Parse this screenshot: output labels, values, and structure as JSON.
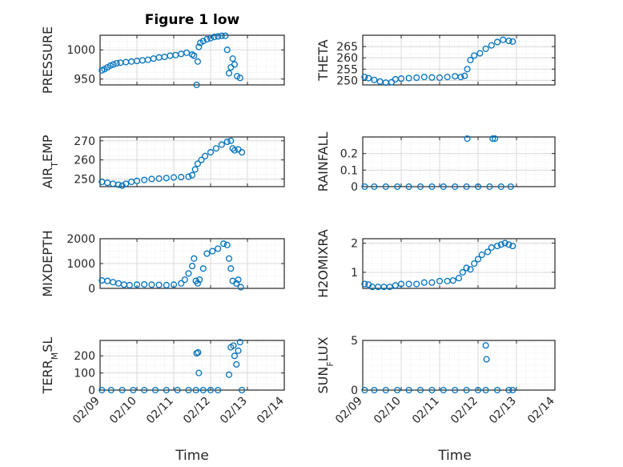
{
  "figure": {
    "title": "Figure 1 low",
    "x_ticks": [
      "02/09",
      "02/10",
      "02/11",
      "02/12",
      "02/13",
      "02/14"
    ],
    "xlabel": "Time",
    "marker_color": "#0072bd",
    "grid_color": "#d9d9d9",
    "axis_color": "#262626"
  },
  "chart_data": [
    {
      "type": "scatter",
      "ylabel": "PRESSURE",
      "xlim": [
        0,
        5
      ],
      "ylim": [
        940,
        1025
      ],
      "y_ticks": [
        950,
        1000
      ],
      "grid": true,
      "points": [
        [
          0.05,
          965
        ],
        [
          0.12,
          967
        ],
        [
          0.2,
          970
        ],
        [
          0.28,
          973
        ],
        [
          0.36,
          975
        ],
        [
          0.45,
          977
        ],
        [
          0.55,
          978
        ],
        [
          0.7,
          979
        ],
        [
          0.85,
          980
        ],
        [
          1.0,
          981
        ],
        [
          1.15,
          982
        ],
        [
          1.3,
          983
        ],
        [
          1.45,
          985
        ],
        [
          1.6,
          987
        ],
        [
          1.75,
          988
        ],
        [
          1.9,
          990
        ],
        [
          2.05,
          991
        ],
        [
          2.2,
          993
        ],
        [
          2.35,
          995
        ],
        [
          2.5,
          992
        ],
        [
          2.55,
          990
        ],
        [
          2.62,
          940
        ],
        [
          2.65,
          980
        ],
        [
          2.68,
          1005
        ],
        [
          2.72,
          1012
        ],
        [
          2.8,
          1015
        ],
        [
          2.9,
          1018
        ],
        [
          3.0,
          1020
        ],
        [
          3.1,
          1022
        ],
        [
          3.2,
          1023
        ],
        [
          3.3,
          1024
        ],
        [
          3.4,
          1024
        ],
        [
          3.45,
          1000
        ],
        [
          3.5,
          960
        ],
        [
          3.55,
          970
        ],
        [
          3.6,
          985
        ],
        [
          3.65,
          975
        ],
        [
          3.72,
          955
        ],
        [
          3.8,
          952
        ]
      ]
    },
    {
      "type": "scatter",
      "ylabel": "THETA",
      "xlim": [
        0,
        5
      ],
      "ylim": [
        248,
        270
      ],
      "y_ticks": [
        250,
        255,
        260,
        265
      ],
      "grid": true,
      "points": [
        [
          0.05,
          251.5
        ],
        [
          0.15,
          251
        ],
        [
          0.3,
          250.2
        ],
        [
          0.45,
          249.5
        ],
        [
          0.6,
          249
        ],
        [
          0.75,
          249.2
        ],
        [
          0.85,
          250.5
        ],
        [
          1.0,
          250.8
        ],
        [
          1.2,
          251
        ],
        [
          1.4,
          251.2
        ],
        [
          1.6,
          251.5
        ],
        [
          1.8,
          251.3
        ],
        [
          2.0,
          251.2
        ],
        [
          2.2,
          251.5
        ],
        [
          2.4,
          251.8
        ],
        [
          2.55,
          251.5
        ],
        [
          2.65,
          252
        ],
        [
          2.72,
          255
        ],
        [
          2.8,
          259
        ],
        [
          2.9,
          261
        ],
        [
          3.05,
          262
        ],
        [
          3.2,
          264
        ],
        [
          3.35,
          265.5
        ],
        [
          3.5,
          267
        ],
        [
          3.65,
          268
        ],
        [
          3.8,
          267.5
        ],
        [
          3.9,
          267.2
        ]
      ]
    },
    {
      "type": "scatter",
      "ylabel": "AIR_TEMP",
      "xlim": [
        0,
        5
      ],
      "ylim": [
        246,
        272
      ],
      "y_ticks": [
        250,
        260,
        270
      ],
      "grid": true,
      "points": [
        [
          0.05,
          248.5
        ],
        [
          0.2,
          248
        ],
        [
          0.35,
          247.5
        ],
        [
          0.5,
          247
        ],
        [
          0.6,
          246.5
        ],
        [
          0.7,
          247.5
        ],
        [
          0.85,
          248.5
        ],
        [
          1.0,
          249
        ],
        [
          1.2,
          249.5
        ],
        [
          1.4,
          250
        ],
        [
          1.6,
          250.2
        ],
        [
          1.8,
          250.5
        ],
        [
          2.0,
          250.8
        ],
        [
          2.2,
          251
        ],
        [
          2.4,
          251.2
        ],
        [
          2.5,
          252
        ],
        [
          2.58,
          255
        ],
        [
          2.65,
          258
        ],
        [
          2.75,
          260
        ],
        [
          2.85,
          262
        ],
        [
          3.0,
          264
        ],
        [
          3.15,
          266
        ],
        [
          3.3,
          268
        ],
        [
          3.45,
          269.5
        ],
        [
          3.55,
          270
        ],
        [
          3.6,
          266
        ],
        [
          3.65,
          265
        ],
        [
          3.75,
          265.5
        ],
        [
          3.85,
          264
        ]
      ]
    },
    {
      "type": "scatter",
      "ylabel": "RAINFALL",
      "xlim": [
        0,
        5
      ],
      "ylim": [
        0,
        0.3
      ],
      "y_ticks": [
        0,
        0.1,
        0.2
      ],
      "grid": true,
      "points": [
        [
          0.05,
          0
        ],
        [
          0.3,
          0
        ],
        [
          0.6,
          0
        ],
        [
          0.9,
          0
        ],
        [
          1.2,
          0
        ],
        [
          1.5,
          0
        ],
        [
          1.8,
          0
        ],
        [
          2.1,
          0
        ],
        [
          2.4,
          0
        ],
        [
          2.7,
          0
        ],
        [
          3.0,
          0
        ],
        [
          3.3,
          0
        ],
        [
          3.6,
          0
        ],
        [
          3.85,
          0
        ],
        [
          2.72,
          0.29
        ],
        [
          3.38,
          0.29
        ],
        [
          3.44,
          0.29
        ]
      ]
    },
    {
      "type": "scatter",
      "ylabel": "MIXDEPTH",
      "xlim": [
        0,
        5
      ],
      "ylim": [
        0,
        2000
      ],
      "y_ticks": [
        0,
        1000,
        2000
      ],
      "grid": true,
      "points": [
        [
          0.05,
          320
        ],
        [
          0.2,
          300
        ],
        [
          0.35,
          250
        ],
        [
          0.5,
          200
        ],
        [
          0.65,
          150
        ],
        [
          0.8,
          130
        ],
        [
          1.0,
          150
        ],
        [
          1.2,
          160
        ],
        [
          1.4,
          150
        ],
        [
          1.6,
          140
        ],
        [
          1.8,
          130
        ],
        [
          2.0,
          150
        ],
        [
          2.2,
          200
        ],
        [
          2.3,
          350
        ],
        [
          2.4,
          600
        ],
        [
          2.5,
          900
        ],
        [
          2.55,
          1200
        ],
        [
          2.6,
          300
        ],
        [
          2.65,
          200
        ],
        [
          2.7,
          350
        ],
        [
          2.8,
          800
        ],
        [
          2.9,
          1400
        ],
        [
          3.05,
          1500
        ],
        [
          3.2,
          1600
        ],
        [
          3.35,
          1800
        ],
        [
          3.45,
          1750
        ],
        [
          3.5,
          1200
        ],
        [
          3.55,
          800
        ],
        [
          3.6,
          300
        ],
        [
          3.7,
          200
        ],
        [
          3.75,
          350
        ],
        [
          3.82,
          50
        ]
      ]
    },
    {
      "type": "scatter",
      "ylabel": "H2OMIXRA",
      "xlim": [
        0,
        5
      ],
      "ylim": [
        0.45,
        2.15
      ],
      "y_ticks": [
        1,
        2
      ],
      "grid": true,
      "points": [
        [
          0.05,
          0.6
        ],
        [
          0.15,
          0.58
        ],
        [
          0.25,
          0.5
        ],
        [
          0.4,
          0.5
        ],
        [
          0.55,
          0.5
        ],
        [
          0.7,
          0.5
        ],
        [
          0.85,
          0.55
        ],
        [
          1.0,
          0.6
        ],
        [
          1.2,
          0.6
        ],
        [
          1.4,
          0.6
        ],
        [
          1.6,
          0.65
        ],
        [
          1.8,
          0.65
        ],
        [
          2.0,
          0.7
        ],
        [
          2.2,
          0.7
        ],
        [
          2.35,
          0.72
        ],
        [
          2.5,
          0.8
        ],
        [
          2.6,
          1.0
        ],
        [
          2.7,
          1.15
        ],
        [
          2.8,
          1.1
        ],
        [
          2.9,
          1.3
        ],
        [
          3.0,
          1.45
        ],
        [
          3.1,
          1.6
        ],
        [
          3.25,
          1.7
        ],
        [
          3.35,
          1.85
        ],
        [
          3.5,
          1.9
        ],
        [
          3.6,
          1.95
        ],
        [
          3.7,
          2.0
        ],
        [
          3.8,
          1.95
        ],
        [
          3.9,
          1.9
        ]
      ]
    },
    {
      "type": "scatter",
      "ylabel": "TERR_MSL",
      "xlim": [
        0,
        5
      ],
      "ylim": [
        0,
        290
      ],
      "y_ticks": [
        0,
        100,
        200
      ],
      "grid": true,
      "points": [
        [
          0.05,
          0
        ],
        [
          0.3,
          0
        ],
        [
          0.6,
          0
        ],
        [
          0.9,
          0
        ],
        [
          1.2,
          0
        ],
        [
          1.5,
          0
        ],
        [
          1.8,
          0
        ],
        [
          2.1,
          0
        ],
        [
          2.4,
          0
        ],
        [
          2.6,
          0
        ],
        [
          2.8,
          0
        ],
        [
          3.0,
          0
        ],
        [
          3.2,
          0
        ],
        [
          2.62,
          215
        ],
        [
          2.66,
          220
        ],
        [
          2.68,
          100
        ],
        [
          3.5,
          90
        ],
        [
          3.55,
          250
        ],
        [
          3.62,
          260
        ],
        [
          3.65,
          200
        ],
        [
          3.7,
          150
        ],
        [
          3.75,
          230
        ],
        [
          3.8,
          280
        ],
        [
          3.85,
          0
        ]
      ]
    },
    {
      "type": "scatter",
      "ylabel": "SUN_FLUX",
      "xlim": [
        0,
        5
      ],
      "ylim": [
        0,
        5
      ],
      "y_ticks": [
        0,
        5
      ],
      "grid": true,
      "points": [
        [
          0.05,
          0
        ],
        [
          0.3,
          0
        ],
        [
          0.6,
          0
        ],
        [
          0.9,
          0
        ],
        [
          1.2,
          0
        ],
        [
          1.5,
          0
        ],
        [
          1.8,
          0
        ],
        [
          2.1,
          0
        ],
        [
          2.4,
          0
        ],
        [
          2.7,
          0
        ],
        [
          3.0,
          0
        ],
        [
          3.2,
          0
        ],
        [
          3.5,
          0
        ],
        [
          3.8,
          0
        ],
        [
          3.9,
          0
        ],
        [
          3.2,
          4.5
        ],
        [
          3.22,
          3.1
        ]
      ]
    }
  ]
}
